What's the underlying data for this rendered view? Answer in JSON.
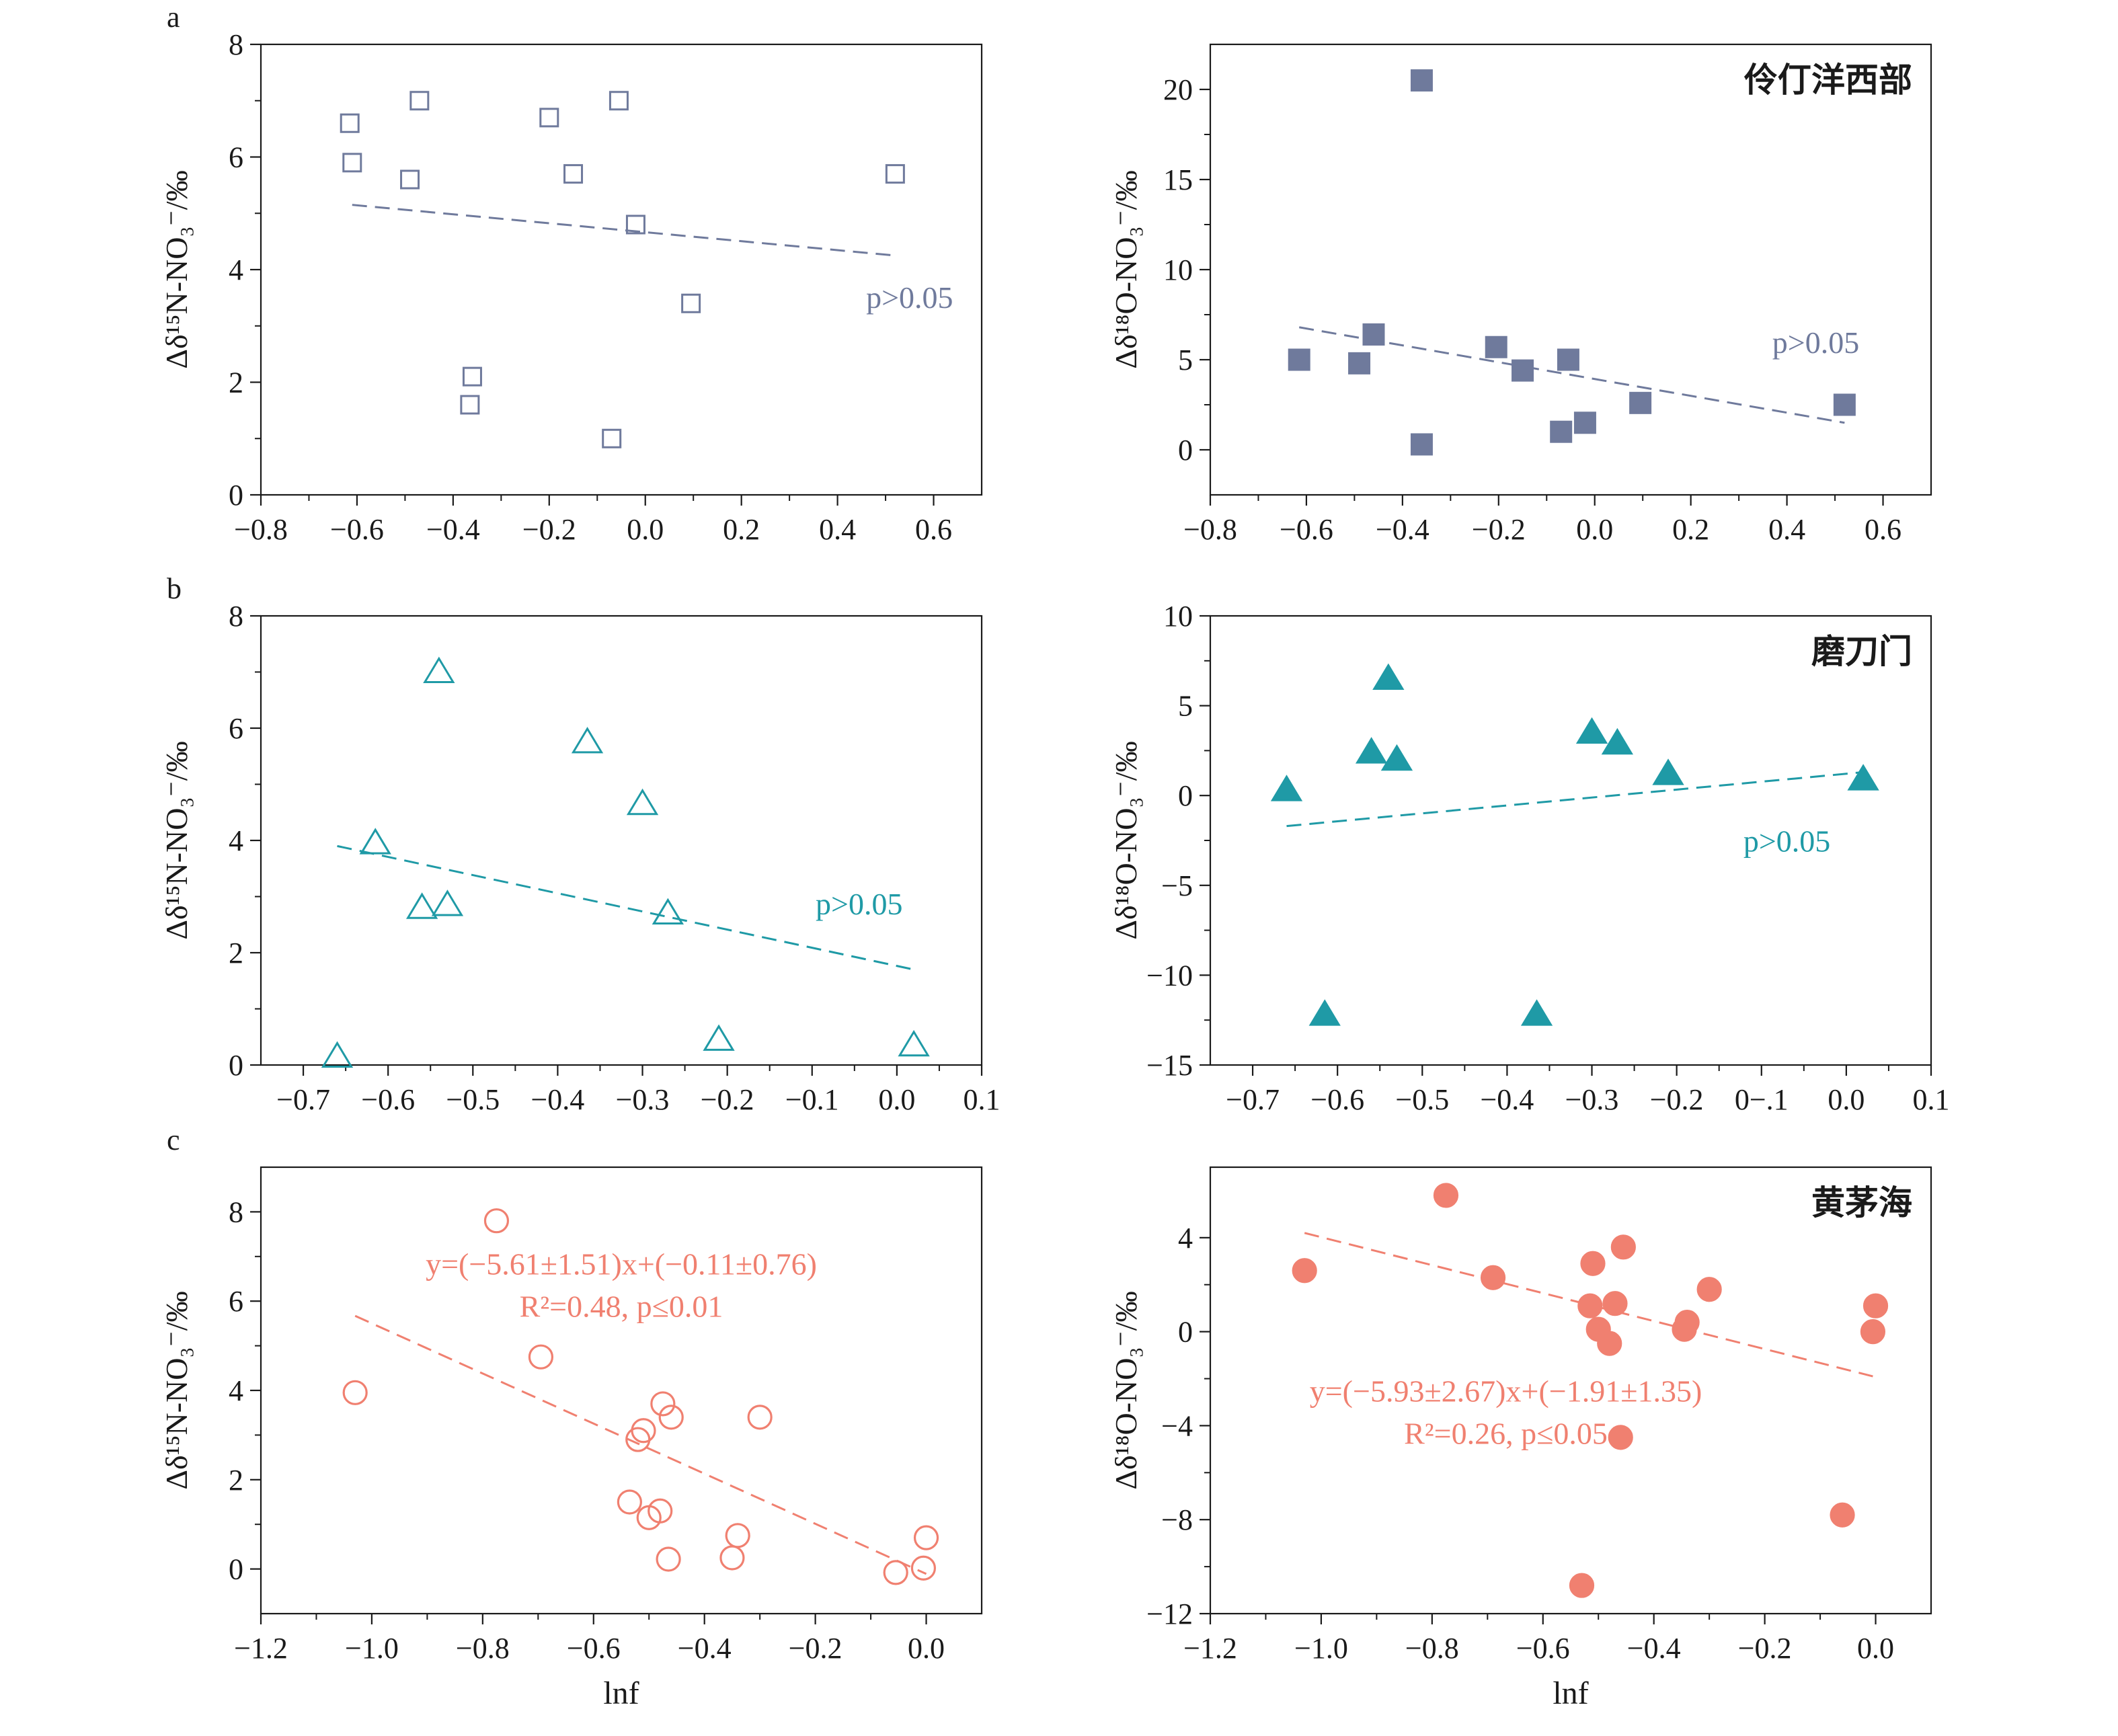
{
  "figure": {
    "panels": [
      {
        "letter": "a",
        "ylabel": "Δδ¹⁵N-NO₃⁻/‰",
        "title": "",
        "xlabel": "",
        "annotation": [
          "p>0.05"
        ]
      },
      {
        "letter": "",
        "ylabel": "Δδ¹⁸O-NO₃⁻/‰",
        "title": "伶仃洋西部",
        "xlabel": "",
        "annotation": [
          "p>0.05"
        ]
      },
      {
        "letter": "b",
        "ylabel": "Δδ¹⁵N-NO₃⁻/‰",
        "title": "",
        "xlabel": "",
        "annotation": [
          "p>0.05"
        ]
      },
      {
        "letter": "",
        "ylabel": "Δδ¹⁸O-NO₃⁻/‰",
        "title": "磨刀门",
        "xlabel": "",
        "annotation": [
          "p>0.05"
        ]
      },
      {
        "letter": "c",
        "ylabel": "Δδ¹⁵N-NO₃⁻/‰",
        "title": "",
        "xlabel": "lnf",
        "annotation": [
          "y=(−5.61±1.51)x+(−0.11±0.76)",
          "R²=0.48, p≤0.01"
        ]
      },
      {
        "letter": "",
        "ylabel": "Δδ¹⁸O-NO₃⁻/‰",
        "title": "黄茅海",
        "xlabel": "lnf",
        "annotation": [
          "y=(−5.93±2.67)x+(−1.91±1.35)",
          "R²=0.26, p≤0.05"
        ]
      }
    ]
  },
  "chart_data": [
    {
      "type": "scatter",
      "panel": "a",
      "title": "",
      "xlabel": "",
      "ylabel": "Δδ¹⁵N-NO₃⁻/‰",
      "xlim": [
        -0.8,
        0.7
      ],
      "ylim": [
        0,
        8
      ],
      "xticks": [
        -0.8,
        -0.6,
        -0.4,
        -0.2,
        0.0,
        0.2,
        0.4,
        0.6
      ],
      "xtick_labels": [
        "−0.8",
        "−0.6",
        "−0.4",
        "−0.2",
        "0.0",
        "0.2",
        "0.4",
        "0.6"
      ],
      "yticks": [
        0,
        2,
        4,
        6,
        8
      ],
      "ytick_labels": [
        "0",
        "2",
        "4",
        "6",
        "8"
      ],
      "color": "#6f7a9c",
      "marker": "square",
      "filled": false,
      "series": [
        {
          "x": [
            -0.615,
            -0.61,
            -0.47,
            -0.49,
            -0.2,
            -0.15,
            -0.055,
            -0.02,
            0.095,
            0.52,
            -0.36,
            -0.365,
            -0.07
          ],
          "y": [
            6.6,
            5.9,
            7.0,
            5.6,
            6.7,
            5.7,
            7.0,
            4.8,
            3.4,
            5.7,
            2.1,
            1.6,
            1.0
          ]
        }
      ],
      "fit": {
        "x": [
          -0.61,
          0.52
        ],
        "y": [
          5.15,
          4.25
        ],
        "style": "dashed"
      },
      "annotation": "p>0.05"
    },
    {
      "type": "scatter",
      "panel": "a-right",
      "title": "伶仃洋西部",
      "xlabel": "",
      "ylabel": "Δδ¹⁸O-NO₃⁻/‰",
      "xlim": [
        -0.8,
        0.7
      ],
      "ylim": [
        -2.5,
        22.5
      ],
      "xticks": [
        -0.8,
        -0.6,
        -0.4,
        -0.2,
        0.0,
        0.2,
        0.4,
        0.6
      ],
      "xtick_labels": [
        "−0.8",
        "−0.6",
        "−0.4",
        "−0.2",
        "0.0",
        "0.2",
        "0.4",
        "0.6"
      ],
      "yticks": [
        0,
        5,
        10,
        15,
        20
      ],
      "ytick_labels": [
        "0",
        "5",
        "10",
        "15",
        "20"
      ],
      "color": "#6f7a9c",
      "marker": "square",
      "filled": true,
      "series": [
        {
          "x": [
            -0.615,
            -0.49,
            -0.46,
            -0.36,
            -0.36,
            -0.205,
            -0.15,
            -0.055,
            -0.07,
            -0.02,
            0.095,
            0.52
          ],
          "y": [
            5.0,
            4.8,
            6.4,
            20.5,
            0.3,
            5.7,
            4.4,
            5.0,
            1.0,
            1.5,
            2.6,
            2.5
          ]
        }
      ],
      "fit": {
        "x": [
          -0.615,
          0.52
        ],
        "y": [
          6.8,
          1.5
        ],
        "style": "dashed"
      },
      "annotation": "p>0.05"
    },
    {
      "type": "scatter",
      "panel": "b",
      "title": "",
      "xlabel": "",
      "ylabel": "Δδ¹⁵N-NO₃⁻/‰",
      "xlim": [
        -0.75,
        0.1
      ],
      "ylim": [
        0,
        8
      ],
      "xticks": [
        -0.7,
        -0.6,
        -0.5,
        -0.4,
        -0.3,
        -0.2,
        -0.1,
        0.0,
        0.1
      ],
      "xtick_labels": [
        "−0.7",
        "−0.6",
        "−0.5",
        "−0.4",
        "−0.3",
        "−0.2",
        "−0.1",
        "0.0",
        "0.1"
      ],
      "yticks": [
        0,
        2,
        4,
        6,
        8
      ],
      "ytick_labels": [
        "0",
        "2",
        "4",
        "6",
        "8"
      ],
      "color": "#1f9aa6",
      "marker": "triangle",
      "filled": false,
      "series": [
        {
          "x": [
            -0.54,
            -0.365,
            -0.3,
            -0.615,
            -0.56,
            -0.53,
            -0.27,
            -0.21,
            0.02,
            -0.66
          ],
          "y": [
            7.0,
            5.75,
            4.65,
            3.95,
            2.8,
            2.85,
            2.7,
            0.45,
            0.35,
            0.15
          ]
        }
      ],
      "fit": {
        "x": [
          -0.66,
          0.02
        ],
        "y": [
          3.9,
          1.7
        ],
        "style": "dashed"
      },
      "annotation": "p>0.05"
    },
    {
      "type": "scatter",
      "panel": "b-right",
      "title": "磨刀门",
      "xlabel": "",
      "ylabel": "Δδ¹⁸O-NO₃⁻/‰",
      "xlim": [
        -0.75,
        0.1
      ],
      "ylim": [
        -15,
        10
      ],
      "xticks": [
        -0.7,
        -0.6,
        -0.5,
        -0.4,
        -0.3,
        -0.2,
        -0.1,
        0.0,
        0.1
      ],
      "xtick_labels": [
        "−0.7",
        "−0.6",
        "−0.5",
        "−0.4",
        "−0.3",
        "−0.2",
        "0−.1",
        "0.0",
        "0.1"
      ],
      "yticks": [
        -15,
        -10,
        -5,
        0,
        5,
        10
      ],
      "ytick_labels": [
        "−15",
        "−10",
        "−5",
        "0",
        "5",
        "10"
      ],
      "color": "#1f9aa6",
      "marker": "triangle",
      "filled": true,
      "series": [
        {
          "x": [
            -0.66,
            -0.615,
            -0.56,
            -0.54,
            -0.53,
            -0.365,
            -0.3,
            -0.27,
            -0.21,
            0.02
          ],
          "y": [
            0.3,
            -12.2,
            2.4,
            6.5,
            2.0,
            -12.2,
            3.5,
            2.9,
            1.2,
            0.9
          ]
        }
      ],
      "fit": {
        "x": [
          -0.66,
          0.02
        ],
        "y": [
          -1.7,
          1.3
        ],
        "style": "dashed"
      },
      "annotation": "p>0.05"
    },
    {
      "type": "scatter",
      "panel": "c",
      "title": "",
      "xlabel": "lnf",
      "ylabel": "Δδ¹⁵N-NO₃⁻/‰",
      "xlim": [
        -1.2,
        0.1
      ],
      "ylim": [
        -1,
        9
      ],
      "xticks": [
        -1.2,
        -1.0,
        -0.8,
        -0.6,
        -0.4,
        -0.2,
        0.0
      ],
      "xtick_labels": [
        "−1.2",
        "−1.0",
        "−0.8",
        "−0.6",
        "−0.4",
        "−0.2",
        "0.0"
      ],
      "yticks": [
        0,
        2,
        4,
        6,
        8
      ],
      "ytick_labels": [
        "0",
        "2",
        "4",
        "6",
        "8"
      ],
      "color": "#f08070",
      "marker": "circle",
      "filled": false,
      "series": [
        {
          "x": [
            -1.03,
            -0.775,
            -0.695,
            -0.475,
            -0.46,
            -0.51,
            -0.52,
            -0.3,
            -0.535,
            -0.48,
            -0.5,
            -0.34,
            -0.35,
            -0.465,
            -0.055,
            0.0,
            -0.005
          ],
          "y": [
            3.95,
            7.8,
            4.75,
            3.7,
            3.4,
            3.1,
            2.9,
            3.4,
            1.5,
            1.3,
            1.15,
            0.75,
            0.25,
            0.22,
            -0.08,
            0.7,
            0.02
          ]
        }
      ],
      "fit": {
        "x": [
          -1.03,
          0.0
        ],
        "y": [
          5.67,
          -0.11
        ],
        "style": "dashed"
      },
      "annotation": "y=(−5.61±1.51)x+(−0.11±0.76) R²=0.48, p≤0.01"
    },
    {
      "type": "scatter",
      "panel": "c-right",
      "title": "黄茅海",
      "xlabel": "lnf",
      "ylabel": "Δδ¹⁸O-NO₃⁻/‰",
      "xlim": [
        -1.2,
        0.1
      ],
      "ylim": [
        -12,
        7
      ],
      "xticks": [
        -1.2,
        -1.0,
        -0.8,
        -0.6,
        -0.4,
        -0.2,
        0.0
      ],
      "xtick_labels": [
        "−1.2",
        "−1.0",
        "−0.8",
        "−0.6",
        "−0.4",
        "−0.2",
        "0.0"
      ],
      "yticks": [
        -12,
        -8,
        -4,
        0,
        4
      ],
      "ytick_labels": [
        "−12",
        "−8",
        "−4",
        "0",
        "4"
      ],
      "color": "#f08070",
      "marker": "circle",
      "filled": true,
      "series": [
        {
          "x": [
            -1.03,
            -0.775,
            -0.69,
            -0.51,
            -0.515,
            -0.455,
            -0.5,
            -0.47,
            -0.48,
            -0.3,
            -0.34,
            -0.345,
            -0.46,
            -0.53,
            -0.06,
            0.0,
            -0.005
          ],
          "y": [
            2.6,
            5.8,
            2.3,
            2.9,
            1.1,
            3.6,
            0.1,
            1.2,
            -0.5,
            1.8,
            0.4,
            0.1,
            -4.5,
            -10.8,
            -7.8,
            1.1,
            0.0
          ]
        }
      ],
      "fit": {
        "x": [
          -1.03,
          -0.005
        ],
        "y": [
          4.2,
          -1.9
        ],
        "style": "dashed"
      },
      "annotation": "y=(−5.93±2.67)x+(−1.91±1.35) R²=0.26, p≤0.05"
    }
  ]
}
